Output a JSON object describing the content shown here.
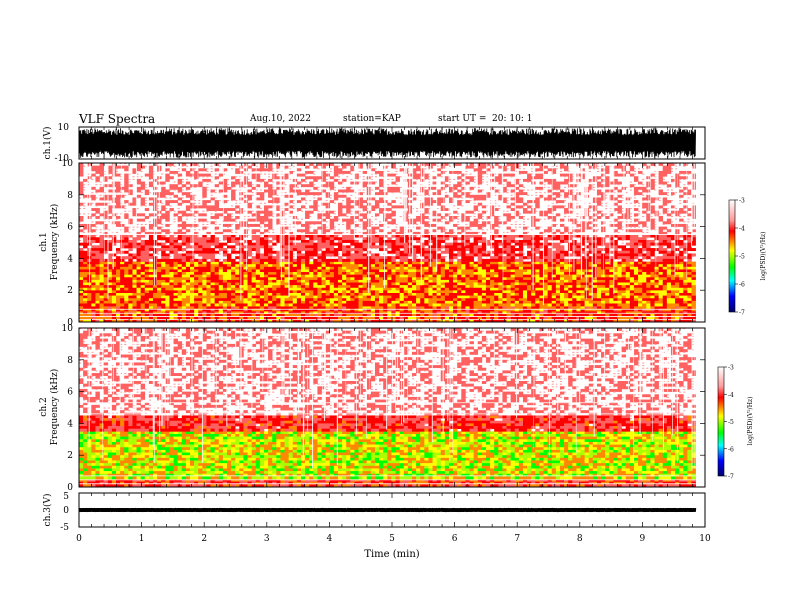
{
  "header": {
    "title": "VLF Spectra",
    "date": "Aug.10, 2022",
    "station": "station=KAP",
    "start": "start UT =",
    "start_time": "20: 10: 1"
  },
  "colors": {
    "colormap": [
      "#ffffff",
      "#ff0000",
      "#ffff00",
      "#00ff00",
      "#00ffff",
      "#0000ff",
      "#00008b"
    ],
    "waveform": "#000000"
  },
  "chart_data": [
    {
      "type": "line",
      "panel": "ch1-waveform",
      "ylabel": "ch.1(V)",
      "ylim": [
        -10,
        10
      ],
      "yticks": [
        "10",
        "-10"
      ],
      "description_values": {
        "x_range_min": [
          0,
          9.85
        ],
        "amplitude_typical_V": [
          -9,
          9
        ]
      }
    },
    {
      "type": "heatmap",
      "panel": "ch1-spectrogram",
      "ylabel": "ch.1\nFrequency (kHz)",
      "ylabel_top": "ch.1",
      "ylabel_bottom": "Frequency (kHz)",
      "ylim": [
        0,
        10
      ],
      "yticks": [
        "0",
        "2",
        "4",
        "6",
        "8",
        "10"
      ],
      "x_range_min": [
        0,
        9.85
      ],
      "colorbar": {
        "label": "log(PSD)(V²/Hz)",
        "range": [
          -7,
          -3
        ],
        "ticks": [
          "-3",
          "-4",
          "-5",
          "-6",
          "-7"
        ]
      },
      "bands": [
        {
          "f_range_kHz": [
            0.0,
            1.0
          ],
          "level": -4.2
        },
        {
          "f_range_kHz": [
            1.0,
            3.8
          ],
          "level": -4.4
        },
        {
          "f_range_kHz": [
            3.8,
            5.5
          ],
          "level": -3.6
        },
        {
          "f_range_kHz": [
            5.5,
            10.0
          ],
          "level": -3.1
        }
      ]
    },
    {
      "type": "heatmap",
      "panel": "ch2-spectrogram",
      "ylabel_top": "ch.2",
      "ylabel_bottom": "Frequency (kHz)",
      "ylim": [
        0,
        10
      ],
      "yticks": [
        "0",
        "2",
        "4",
        "6",
        "8",
        "10"
      ],
      "x_range_min": [
        0,
        9.85
      ],
      "colorbar": {
        "label": "log(PSD)(V²/Hz)",
        "range": [
          -7,
          -3
        ],
        "ticks": [
          "-3",
          "-4",
          "-5",
          "-6",
          "-7"
        ]
      },
      "bands": [
        {
          "f_range_kHz": [
            0.0,
            0.5
          ],
          "level": -4.0
        },
        {
          "f_range_kHz": [
            0.5,
            3.5
          ],
          "level": -4.9
        },
        {
          "f_range_kHz": [
            3.5,
            4.5
          ],
          "level": -3.8
        },
        {
          "f_range_kHz": [
            4.5,
            10.0
          ],
          "level": -3.1
        }
      ]
    },
    {
      "type": "line",
      "panel": "ch3-waveform",
      "ylabel": "ch.3(V)",
      "ylim": [
        -5,
        5
      ],
      "yticks": [
        "5",
        "0",
        "-5"
      ],
      "xlabel": "Time (min)",
      "xlim": [
        0,
        10
      ],
      "xticks": [
        "0",
        "1",
        "2",
        "3",
        "4",
        "5",
        "6",
        "7",
        "8",
        "9",
        "10"
      ],
      "description_values": {
        "x_range_min": [
          0,
          9.85
        ],
        "offset_V": 0,
        "amplitude_V": 0.6
      }
    }
  ]
}
